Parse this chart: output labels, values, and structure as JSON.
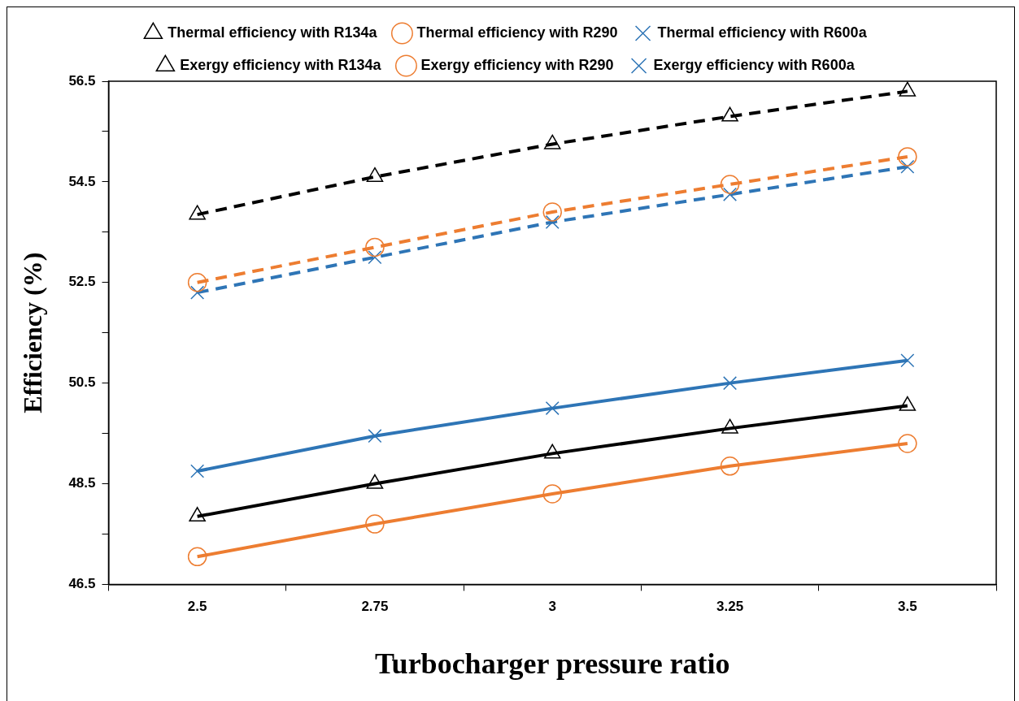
{
  "chart_data": {
    "type": "line",
    "xlabel": "Turbocharger pressure ratio",
    "ylabel": "Efficiency (%)",
    "categories": [
      "2.5",
      "2.75",
      "3",
      "3.25",
      "3.5"
    ],
    "ylim": [
      46.5,
      56.5
    ],
    "yticks": [
      46.5,
      {
        "value": 47.5,
        "label": null
      },
      48.5,
      {
        "value": 49.5,
        "label": null
      },
      50.5,
      {
        "value": 51.5,
        "label": null
      },
      52.5,
      {
        "value": 53.5,
        "label": null
      },
      54.5,
      {
        "value": 55.5,
        "label": null
      },
      56.5
    ],
    "grid": false,
    "legend": "top",
    "series": [
      {
        "name": "Thermal efficiency with R134a",
        "color": "#000000",
        "marker": "triangle",
        "line_style": "solid",
        "values": [
          47.85,
          48.5,
          49.1,
          49.6,
          50.05
        ]
      },
      {
        "name": "Thermal efficiency with R290",
        "color": "#ed7d31",
        "marker": "circle",
        "line_style": "solid",
        "values": [
          47.05,
          47.7,
          48.3,
          48.85,
          49.3
        ]
      },
      {
        "name": "Thermal efficiency with R600a",
        "color": "#2e75b6",
        "marker": "cross",
        "line_style": "solid",
        "values": [
          48.75,
          49.45,
          50,
          50.5,
          50.95
        ]
      },
      {
        "name": "Exergy efficiency with R134a",
        "color": "#000000",
        "marker": "triangle",
        "line_style": "dashed",
        "values": [
          53.85,
          54.6,
          55.25,
          55.8,
          56.3
        ]
      },
      {
        "name": "Exergy efficiency with R290",
        "color": "#ed7d31",
        "marker": "circle",
        "line_style": "dashed",
        "values": [
          52.5,
          53.2,
          53.9,
          54.45,
          55
        ]
      },
      {
        "name": "Exergy efficiency with R600a",
        "color": "#2e75b6",
        "marker": "cross",
        "line_style": "dashed",
        "values": [
          52.3,
          53,
          53.7,
          54.25,
          54.8
        ]
      }
    ]
  }
}
